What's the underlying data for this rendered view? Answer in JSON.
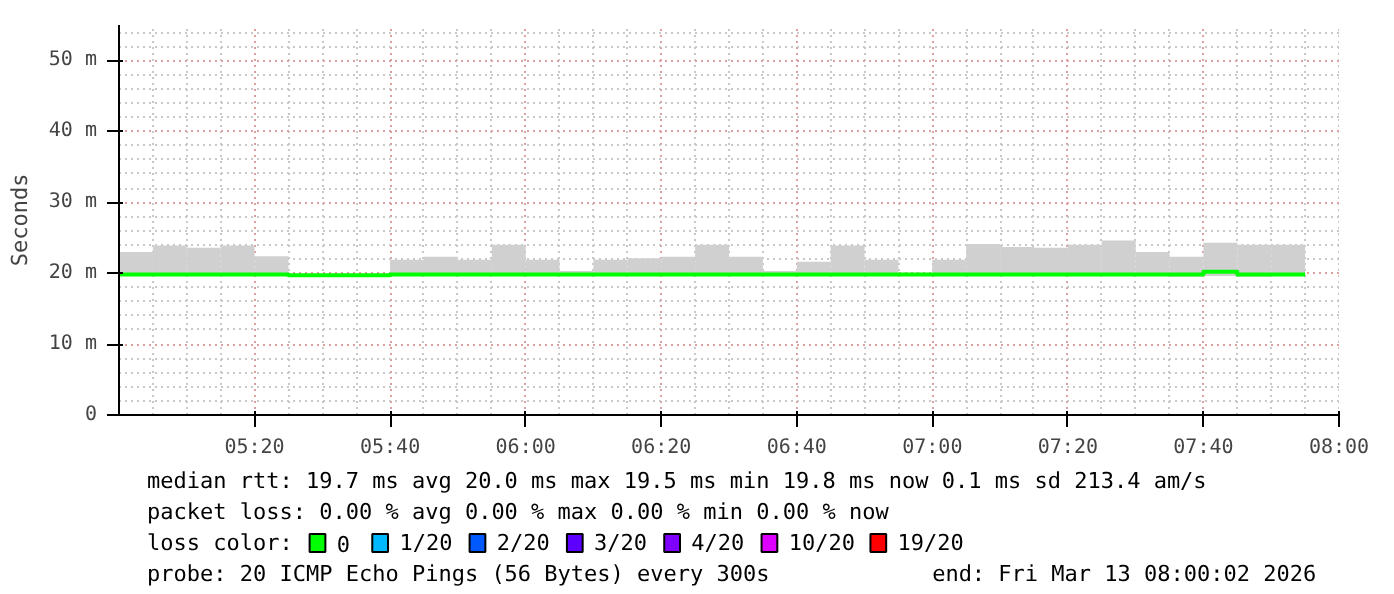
{
  "chart_data": {
    "type": "step",
    "ylabel": "Seconds",
    "legend_title": "loss color:",
    "legend": "bottom",
    "grid": true,
    "xlim": [
      5.0,
      8.0
    ],
    "xticks": [
      {
        "value": 5.333333,
        "label": "05:20"
      },
      {
        "value": 5.666667,
        "label": "05:40"
      },
      {
        "value": 6.0,
        "label": "06:00"
      },
      {
        "value": 6.333333,
        "label": "06:20"
      },
      {
        "value": 6.666667,
        "label": "06:40"
      },
      {
        "value": 7.0,
        "label": "07:00"
      },
      {
        "value": 7.333333,
        "label": "07:20"
      },
      {
        "value": 7.666667,
        "label": "07:40"
      },
      {
        "value": 8.0,
        "label": "08:00"
      }
    ],
    "ylim": [
      0,
      55
    ],
    "yticks": [
      0,
      {
        "value": 10,
        "label": "10 m"
      },
      {
        "value": 20,
        "label": "20 m"
      },
      {
        "value": 30,
        "label": "30 m"
      },
      {
        "value": 40,
        "label": "40 m"
      },
      {
        "value": 50,
        "label": "50 m"
      }
    ],
    "x": [
      5.0,
      5.083333,
      5.166667,
      5.25,
      5.333333,
      5.416667,
      5.5,
      5.583333,
      5.666667,
      5.75,
      5.833333,
      5.916667,
      6.0,
      6.083333,
      6.166667,
      6.25,
      6.333333,
      6.416667,
      6.5,
      6.583333,
      6.666667,
      6.75,
      6.833333,
      6.916667,
      7.0,
      7.083333,
      7.166667,
      7.25,
      7.333333,
      7.416667,
      7.5,
      7.583333,
      7.666667,
      7.75,
      7.833333,
      7.916667
    ],
    "series": [
      {
        "name": "0",
        "color": "#00ff00",
        "values": [
          19.8,
          19.8,
          19.8,
          19.8,
          19.8,
          19.7,
          19.7,
          19.7,
          19.8,
          19.8,
          19.8,
          19.8,
          19.8,
          19.8,
          19.8,
          19.8,
          19.8,
          19.8,
          19.8,
          19.8,
          19.8,
          19.8,
          19.8,
          19.8,
          19.8,
          19.8,
          19.8,
          19.8,
          19.8,
          19.8,
          19.8,
          19.8,
          20.2,
          19.8,
          19.8,
          19.8
        ],
        "lower": [
          19.6,
          19.6,
          19.6,
          19.6,
          19.6,
          null,
          null,
          null,
          19.6,
          19.6,
          19.6,
          19.6,
          19.6,
          19.6,
          19.6,
          19.6,
          19.6,
          19.6,
          19.6,
          19.6,
          19.6,
          19.6,
          19.6,
          null,
          19.6,
          19.6,
          19.6,
          19.6,
          19.6,
          19.6,
          19.6,
          19.5,
          19.6,
          19.5,
          19.6,
          19.6
        ],
        "upper": [
          23.0,
          23.9,
          23.6,
          23.9,
          22.4,
          null,
          null,
          null,
          21.9,
          22.3,
          21.9,
          24.0,
          21.9,
          20.3,
          21.9,
          22.1,
          22.3,
          24.0,
          22.3,
          20.3,
          21.6,
          23.9,
          21.9,
          null,
          21.9,
          24.1,
          23.7,
          23.6,
          24.0,
          24.6,
          23.0,
          22.3,
          24.3,
          24.0,
          24.0,
          24.0
        ]
      },
      {
        "name": "1/20",
        "color": "#00b8ff",
        "values": [
          null,
          null,
          null,
          null,
          null,
          null,
          null,
          null,
          null,
          null,
          null,
          null,
          null,
          null,
          null,
          null,
          null,
          null,
          null,
          null,
          null,
          null,
          null,
          null,
          null,
          null,
          null,
          null,
          null,
          null,
          null,
          null,
          null,
          null,
          null,
          null
        ]
      },
      {
        "name": "2/20",
        "color": "#0059ff",
        "values": [
          null,
          null,
          null,
          null,
          null,
          null,
          null,
          null,
          null,
          null,
          null,
          null,
          null,
          null,
          null,
          null,
          null,
          null,
          null,
          null,
          null,
          null,
          null,
          null,
          null,
          null,
          null,
          null,
          null,
          null,
          null,
          null,
          null,
          null,
          null,
          null
        ]
      },
      {
        "name": "3/20",
        "color": "#5e00ff",
        "values": [
          null,
          null,
          null,
          null,
          null,
          null,
          null,
          null,
          null,
          null,
          null,
          null,
          null,
          null,
          null,
          null,
          null,
          null,
          null,
          null,
          null,
          null,
          null,
          null,
          null,
          null,
          null,
          null,
          null,
          null,
          null,
          null,
          null,
          null,
          null,
          null
        ]
      },
      {
        "name": "4/20",
        "color": "#7e00ff",
        "values": [
          null,
          null,
          null,
          null,
          null,
          null,
          null,
          null,
          null,
          null,
          null,
          null,
          null,
          null,
          null,
          null,
          null,
          null,
          null,
          null,
          null,
          null,
          null,
          null,
          null,
          null,
          null,
          null,
          null,
          null,
          null,
          null,
          null,
          null,
          null,
          null
        ]
      },
      {
        "name": "10/20",
        "color": "#dd00ff",
        "values": [
          null,
          null,
          null,
          null,
          null,
          null,
          null,
          null,
          null,
          null,
          null,
          null,
          null,
          null,
          null,
          null,
          null,
          null,
          null,
          null,
          null,
          null,
          null,
          null,
          null,
          null,
          null,
          null,
          null,
          null,
          null,
          null,
          null,
          null,
          null,
          null
        ]
      },
      {
        "name": "19/20",
        "color": "#ff0000",
        "values": [
          null,
          null,
          null,
          null,
          null,
          null,
          null,
          null,
          null,
          null,
          null,
          null,
          null,
          null,
          null,
          null,
          null,
          null,
          null,
          null,
          null,
          null,
          null,
          null,
          null,
          null,
          null,
          null,
          null,
          null,
          null,
          null,
          null,
          null,
          null,
          null
        ]
      }
    ],
    "annotations": [
      "median rtt:  19.7 ms avg  20.0 ms max  19.5 ms min  19.8 ms now  0.1 ms sd  213.4   am/s",
      "packet loss: 0.00 % avg  0.00 % max  0.00 % min  0.00 % now",
      "probe:       20 ICMP Echo Pings (56 Bytes) every 300s",
      "end: Fri Mar 13 08:00:02 2026"
    ]
  }
}
